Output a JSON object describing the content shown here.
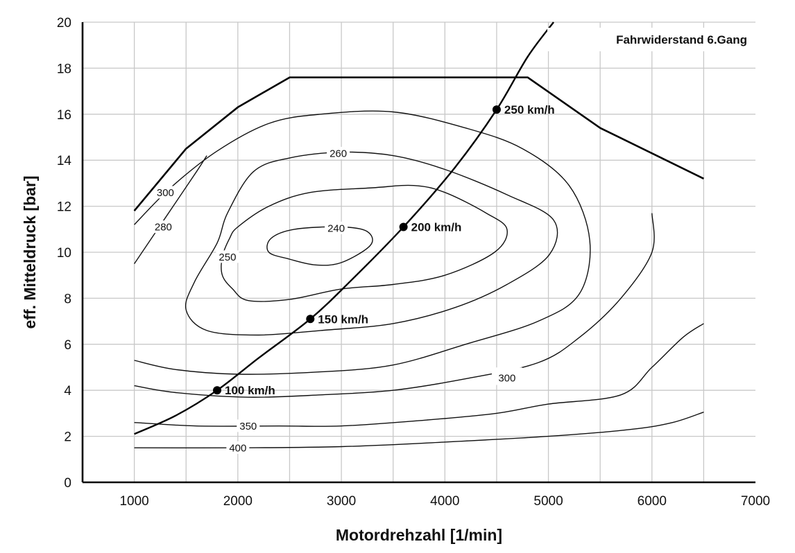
{
  "chart_data": {
    "type": "line",
    "title": "",
    "xlabel": "Motordrehzahl [1/min]",
    "ylabel": "eff. Mitteldruck [bar]",
    "xlim": [
      500,
      7000
    ],
    "ylim": [
      0,
      20
    ],
    "x_ticks": [
      1000,
      2000,
      3000,
      4000,
      5000,
      6000,
      7000
    ],
    "y_ticks": [
      0,
      2,
      4,
      6,
      8,
      10,
      12,
      14,
      16,
      18,
      20
    ],
    "grid": true,
    "x_grid_step": 500,
    "y_grid_step": 2,
    "annotation": "Fahrwiderstand 6.Gang",
    "full_load": [
      [
        1000,
        11.8
      ],
      [
        1500,
        14.5
      ],
      [
        2000,
        16.3
      ],
      [
        2500,
        17.6
      ],
      [
        4800,
        17.6
      ],
      [
        5500,
        15.4
      ],
      [
        6500,
        13.2
      ]
    ],
    "road_load": {
      "name": "Fahrwiderstand 6.Gang",
      "points": [
        [
          1000,
          2.1
        ],
        [
          1400,
          2.9
        ],
        [
          1800,
          4.0
        ],
        [
          2200,
          5.4
        ],
        [
          2700,
          7.1
        ],
        [
          3100,
          8.8
        ],
        [
          3600,
          11.1
        ],
        [
          4100,
          13.7
        ],
        [
          4500,
          16.2
        ],
        [
          4800,
          18.5
        ],
        [
          5050,
          20.0
        ]
      ],
      "markers": [
        {
          "x": 1800,
          "y": 4.0,
          "label": "100 km/h"
        },
        {
          "x": 2700,
          "y": 7.1,
          "label": "150 km/h"
        },
        {
          "x": 3600,
          "y": 11.1,
          "label": "200 km/h"
        },
        {
          "x": 4500,
          "y": 16.2,
          "label": "250 km/h"
        }
      ]
    },
    "contours": [
      {
        "label": "240",
        "closed": true,
        "label_at": [
          2950,
          11.05
        ],
        "points": [
          [
            2550,
            11.0
          ],
          [
            3000,
            11.1
          ],
          [
            3250,
            10.9
          ],
          [
            3280,
            10.3
          ],
          [
            3000,
            9.55
          ],
          [
            2750,
            9.45
          ],
          [
            2500,
            9.7
          ],
          [
            2300,
            10.0
          ],
          [
            2320,
            10.6
          ]
        ]
      },
      {
        "label": "250",
        "closed": true,
        "label_at": [
          1900,
          9.8
        ],
        "points": [
          [
            2000,
            11.1
          ],
          [
            2300,
            12.0
          ],
          [
            2700,
            12.6
          ],
          [
            3300,
            12.8
          ],
          [
            3700,
            12.9
          ],
          [
            4000,
            12.6
          ],
          [
            4400,
            11.7
          ],
          [
            4600,
            11.0
          ],
          [
            4480,
            10.0
          ],
          [
            4000,
            9.0
          ],
          [
            3500,
            8.6
          ],
          [
            3000,
            8.4
          ],
          [
            2500,
            7.95
          ],
          [
            2100,
            7.9
          ],
          [
            1950,
            8.4
          ],
          [
            1850,
            9.0
          ],
          [
            1850,
            9.8
          ],
          [
            1920,
            10.6
          ]
        ]
      },
      {
        "label": "260",
        "closed": true,
        "label_at": [
          2970,
          14.3
        ],
        "points": [
          [
            2150,
            13.5
          ],
          [
            2500,
            14.1
          ],
          [
            3000,
            14.35
          ],
          [
            3500,
            14.2
          ],
          [
            4000,
            13.6
          ],
          [
            4600,
            12.5
          ],
          [
            5050,
            11.4
          ],
          [
            5010,
            9.9
          ],
          [
            4600,
            8.6
          ],
          [
            4100,
            7.6
          ],
          [
            3500,
            6.9
          ],
          [
            2800,
            6.6
          ],
          [
            2200,
            6.4
          ],
          [
            1700,
            6.6
          ],
          [
            1500,
            7.5
          ],
          [
            1580,
            8.7
          ],
          [
            1800,
            10.4
          ],
          [
            1900,
            11.7
          ]
        ]
      },
      {
        "label": "280",
        "closed": false,
        "label_at": [
          1280,
          11.1
        ],
        "points": [
          [
            1000,
            11.2
          ],
          [
            1350,
            12.8
          ],
          [
            1800,
            14.4
          ],
          [
            2300,
            15.6
          ],
          [
            2800,
            16.0
          ],
          [
            3500,
            16.1
          ],
          [
            4200,
            15.4
          ],
          [
            4750,
            14.5
          ],
          [
            5200,
            12.9
          ],
          [
            5400,
            10.5
          ],
          [
            5300,
            8.2
          ],
          [
            4900,
            7.0
          ],
          [
            4200,
            6.0
          ],
          [
            3500,
            5.1
          ],
          [
            2800,
            4.8
          ],
          [
            2000,
            4.7
          ],
          [
            1400,
            4.9
          ],
          [
            1000,
            5.3
          ]
        ]
      },
      {
        "label": "300",
        "closed": false,
        "label_at": [
          1300,
          12.6
        ],
        "points": [
          [
            1000,
            9.5
          ],
          [
            1300,
            11.5
          ],
          [
            1600,
            13.5
          ],
          [
            1700,
            14.2
          ]
        ]
      },
      {
        "label": "300",
        "closed": false,
        "label_at": [
          4600,
          4.6
        ],
        "points": [
          [
            6000,
            11.7
          ],
          [
            6000,
            10.0
          ],
          [
            5700,
            8.0
          ],
          [
            5300,
            6.3
          ],
          [
            4900,
            5.2
          ],
          [
            4200,
            4.5
          ],
          [
            3500,
            4.0
          ],
          [
            2800,
            3.8
          ],
          [
            2100,
            3.7
          ],
          [
            1400,
            3.9
          ],
          [
            1000,
            4.2
          ]
        ]
      },
      {
        "label": "350",
        "closed": false,
        "label_at": [
          2100,
          2.45
        ],
        "points": [
          [
            1000,
            2.6
          ],
          [
            1600,
            2.45
          ],
          [
            2400,
            2.45
          ],
          [
            3000,
            2.45
          ],
          [
            3800,
            2.7
          ],
          [
            4500,
            3.0
          ],
          [
            5000,
            3.4
          ],
          [
            5700,
            3.8
          ],
          [
            6000,
            5.0
          ],
          [
            6300,
            6.3
          ],
          [
            6500,
            6.9
          ]
        ]
      },
      {
        "label": "400",
        "closed": false,
        "label_at": [
          2000,
          1.5
        ],
        "points": [
          [
            1000,
            1.5
          ],
          [
            2000,
            1.5
          ],
          [
            3000,
            1.55
          ],
          [
            4000,
            1.75
          ],
          [
            5000,
            2.0
          ],
          [
            5800,
            2.3
          ],
          [
            6200,
            2.6
          ],
          [
            6500,
            3.05
          ]
        ]
      }
    ]
  }
}
